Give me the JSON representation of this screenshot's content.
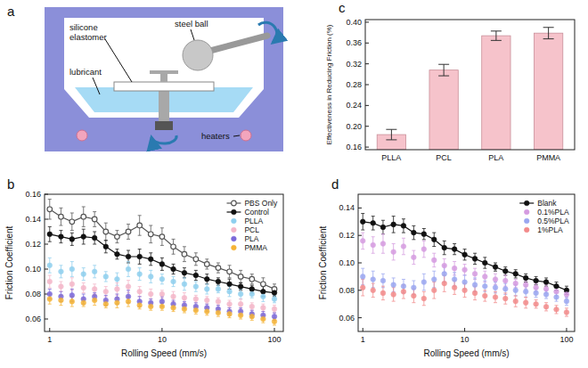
{
  "diagram": {
    "panel_label": "a",
    "labels": {
      "silicone_elastomer": "silicone elastomer",
      "lubricant": "lubricant",
      "steel_ball": "steel ball",
      "heaters": "heaters"
    }
  },
  "chart_data": [
    {
      "panel_label": "b",
      "type": "line",
      "log": "x",
      "grid": false,
      "legend": "upper right",
      "x_label": "Rolling Speed (mm/s)",
      "y_label": "Friction Coefficient",
      "x": [
        1,
        1.26,
        1.58,
        2,
        2.51,
        3.16,
        3.98,
        5.01,
        6.31,
        7.94,
        10,
        12.6,
        15.8,
        20,
        25.1,
        31.6,
        39.8,
        50.1,
        63.1,
        79.4,
        100
      ],
      "xlim": [
        0.9,
        120
      ],
      "xticks": [
        1,
        10,
        100
      ],
      "ylim": [
        0.05,
        0.16
      ],
      "yticks": [
        0.06,
        0.08,
        {
          "value": 0.1,
          "label": "0.10"
        },
        0.12,
        0.14,
        0.16
      ],
      "series": [
        {
          "name": "PBS Only",
          "color": "#555555",
          "type": "line",
          "marker": "open-circle",
          "values": [
            0.148,
            0.142,
            0.138,
            0.142,
            0.14,
            0.13,
            0.126,
            0.13,
            0.135,
            0.128,
            0.126,
            0.118,
            0.112,
            0.108,
            0.104,
            0.101,
            0.098,
            0.094,
            0.092,
            0.088,
            0.084
          ],
          "errors": [
            0.008,
            0.007,
            0.007,
            0.008,
            0.006,
            0.007,
            0.005,
            0.006,
            0.008,
            0.007,
            0.007,
            0.006,
            0.006,
            0.005,
            0.004,
            0.004,
            0.005,
            0.005,
            0.004,
            0.005,
            0.004
          ]
        },
        {
          "name": "Control",
          "color": "#111111",
          "type": "line",
          "marker": "circle",
          "values": [
            0.128,
            0.126,
            0.124,
            0.126,
            0.125,
            0.118,
            0.112,
            0.11,
            0.11,
            0.108,
            0.104,
            0.1,
            0.097,
            0.095,
            0.092,
            0.09,
            0.088,
            0.086,
            0.084,
            0.082,
            0.081
          ],
          "errors": [
            0.006,
            0.005,
            0.005,
            0.006,
            0.005,
            0.005,
            0.004,
            0.005,
            0.006,
            0.005,
            0.005,
            0.004,
            0.004,
            0.004,
            0.004,
            0.003,
            0.004,
            0.003,
            0.003,
            0.004,
            0.003
          ]
        },
        {
          "name": "PLLA",
          "color": "#8ecfee",
          "type": "scatter",
          "marker": "circle",
          "values": [
            0.103,
            0.098,
            0.1,
            0.096,
            0.098,
            0.094,
            0.092,
            0.1,
            0.096,
            0.094,
            0.092,
            0.09,
            0.088,
            0.086,
            0.084,
            0.084,
            0.082,
            0.08,
            0.08,
            0.078,
            0.076
          ],
          "errors": [
            0.006,
            0.005,
            0.006,
            0.005,
            0.005,
            0.004,
            0.005,
            0.006,
            0.005,
            0.005,
            0.004,
            0.004,
            0.005,
            0.004,
            0.004,
            0.003,
            0.004,
            0.004,
            0.003,
            0.004,
            0.003
          ]
        },
        {
          "name": "PCL",
          "color": "#f4b6c8",
          "type": "scatter",
          "marker": "circle",
          "values": [
            0.09,
            0.086,
            0.088,
            0.085,
            0.084,
            0.082,
            0.084,
            0.086,
            0.082,
            0.08,
            0.08,
            0.078,
            0.077,
            0.076,
            0.075,
            0.074,
            0.072,
            0.072,
            0.07,
            0.069,
            0.068
          ],
          "errors": [
            0.005,
            0.004,
            0.005,
            0.004,
            0.004,
            0.004,
            0.005,
            0.005,
            0.004,
            0.004,
            0.003,
            0.004,
            0.004,
            0.003,
            0.003,
            0.003,
            0.003,
            0.004,
            0.003,
            0.003,
            0.003
          ]
        },
        {
          "name": "PLA",
          "color": "#7b68d9",
          "type": "scatter",
          "marker": "circle",
          "values": [
            0.08,
            0.078,
            0.079,
            0.076,
            0.078,
            0.075,
            0.076,
            0.078,
            0.074,
            0.073,
            0.074,
            0.072,
            0.071,
            0.07,
            0.069,
            0.068,
            0.066,
            0.066,
            0.064,
            0.063,
            0.062
          ],
          "errors": [
            0.004,
            0.004,
            0.005,
            0.004,
            0.003,
            0.004,
            0.004,
            0.005,
            0.004,
            0.003,
            0.004,
            0.003,
            0.003,
            0.003,
            0.003,
            0.003,
            0.003,
            0.003,
            0.003,
            0.003,
            0.003
          ]
        },
        {
          "name": "PMMA",
          "color": "#f5b335",
          "type": "scatter",
          "marker": "circle",
          "values": [
            0.076,
            0.075,
            0.074,
            0.073,
            0.075,
            0.072,
            0.073,
            0.074,
            0.071,
            0.07,
            0.07,
            0.069,
            0.068,
            0.067,
            0.066,
            0.065,
            0.064,
            0.063,
            0.062,
            0.06,
            0.058
          ],
          "errors": [
            0.004,
            0.004,
            0.004,
            0.003,
            0.004,
            0.003,
            0.004,
            0.004,
            0.003,
            0.003,
            0.003,
            0.003,
            0.003,
            0.003,
            0.003,
            0.003,
            0.003,
            0.003,
            0.003,
            0.003,
            0.003
          ]
        }
      ]
    },
    {
      "panel_label": "c",
      "type": "bar",
      "grid": false,
      "y_label": "Effectiveness in Reducing Friction (%)",
      "categories": [
        "PLLA",
        "PCL",
        "PLA",
        "PMMA"
      ],
      "values": [
        0.184,
        0.308,
        0.374,
        0.379
      ],
      "errors": [
        0.01,
        0.011,
        0.009,
        0.011
      ],
      "color": "#f6c3cb",
      "ylim": [
        0.155,
        0.405
      ],
      "yticks": [
        0.16,
        {
          "value": 0.2,
          "label": "0.20"
        },
        0.24,
        0.28,
        0.32,
        0.36,
        {
          "value": 0.4,
          "label": "0.40"
        }
      ]
    },
    {
      "panel_label": "d",
      "type": "line",
      "log": "x",
      "grid": false,
      "legend": "upper right",
      "x_label": "Rolling Speed (mm/s)",
      "y_label": "Friction Coefficient",
      "x": [
        1,
        1.26,
        1.58,
        2,
        2.51,
        3.16,
        3.98,
        5.01,
        6.31,
        7.94,
        10,
        12.6,
        15.8,
        20,
        25.1,
        31.6,
        39.8,
        50.1,
        63.1,
        79.4,
        100
      ],
      "xlim": [
        0.9,
        120
      ],
      "xticks": [
        1,
        10,
        100
      ],
      "ylim": [
        0.05,
        0.15
      ],
      "yticks": [
        0.06,
        0.08,
        {
          "value": 0.1,
          "label": "0.10"
        },
        0.12,
        0.14
      ],
      "series": [
        {
          "name": "Blank",
          "color": "#111111",
          "type": "line",
          "marker": "circle",
          "values": [
            0.13,
            0.129,
            0.126,
            0.128,
            0.127,
            0.122,
            0.121,
            0.117,
            0.111,
            0.11,
            0.106,
            0.103,
            0.1,
            0.097,
            0.094,
            0.092,
            0.089,
            0.087,
            0.086,
            0.083,
            0.08
          ],
          "errors": [
            0.006,
            0.005,
            0.005,
            0.006,
            0.005,
            0.005,
            0.004,
            0.005,
            0.005,
            0.004,
            0.004,
            0.004,
            0.004,
            0.003,
            0.003,
            0.003,
            0.003,
            0.003,
            0.003,
            0.003,
            0.003
          ]
        },
        {
          "name": "0.1%PLA",
          "color": "#d59be0",
          "type": "scatter",
          "marker": "circle",
          "values": [
            0.116,
            0.113,
            0.114,
            0.108,
            0.112,
            0.104,
            0.11,
            0.102,
            0.098,
            0.096,
            0.095,
            0.092,
            0.09,
            0.088,
            0.087,
            0.085,
            0.084,
            0.082,
            0.081,
            0.079,
            0.077
          ],
          "errors": [
            0.006,
            0.006,
            0.007,
            0.006,
            0.006,
            0.005,
            0.006,
            0.005,
            0.005,
            0.005,
            0.004,
            0.004,
            0.004,
            0.004,
            0.004,
            0.003,
            0.003,
            0.003,
            0.003,
            0.003,
            0.003
          ]
        },
        {
          "name": "0.5%PLA",
          "color": "#9aa6f0",
          "type": "scatter",
          "marker": "circle",
          "values": [
            0.09,
            0.088,
            0.087,
            0.084,
            0.083,
            0.082,
            0.086,
            0.088,
            0.092,
            0.088,
            0.086,
            0.084,
            0.083,
            0.082,
            0.081,
            0.08,
            0.079,
            0.078,
            0.077,
            0.075,
            0.072
          ],
          "errors": [
            0.006,
            0.006,
            0.005,
            0.005,
            0.005,
            0.005,
            0.006,
            0.006,
            0.006,
            0.005,
            0.005,
            0.005,
            0.004,
            0.004,
            0.004,
            0.004,
            0.004,
            0.003,
            0.003,
            0.003,
            0.003
          ]
        },
        {
          "name": "1%PLA",
          "color": "#f28a8a",
          "type": "scatter",
          "marker": "circle",
          "values": [
            0.082,
            0.08,
            0.078,
            0.077,
            0.079,
            0.076,
            0.074,
            0.08,
            0.085,
            0.082,
            0.08,
            0.078,
            0.076,
            0.075,
            0.074,
            0.072,
            0.071,
            0.07,
            0.068,
            0.066,
            0.064
          ],
          "errors": [
            0.006,
            0.005,
            0.005,
            0.005,
            0.005,
            0.005,
            0.005,
            0.006,
            0.006,
            0.005,
            0.005,
            0.005,
            0.004,
            0.004,
            0.004,
            0.004,
            0.004,
            0.003,
            0.003,
            0.003,
            0.003
          ]
        }
      ]
    }
  ]
}
